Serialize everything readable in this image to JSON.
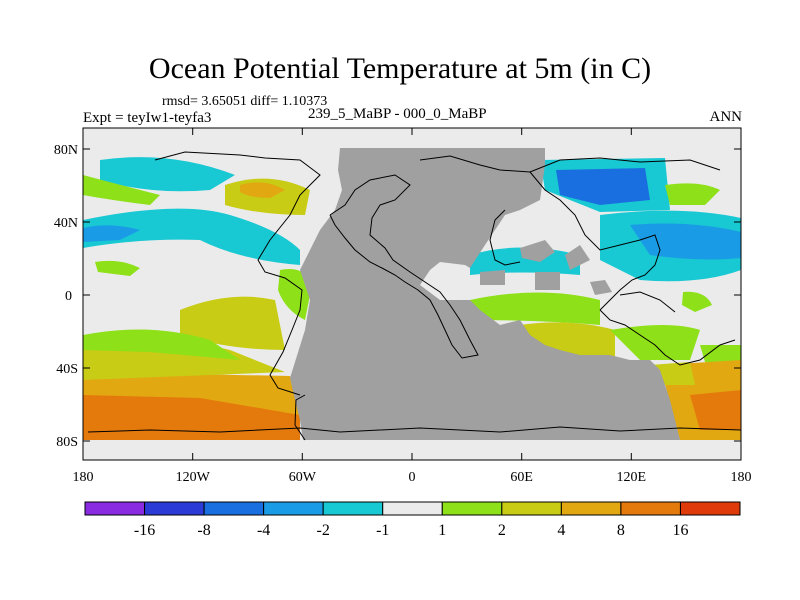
{
  "title": "Ocean Potential Temperature at 5m (in C)",
  "stats": "rmsd= 3.65051 diff= 1.10373",
  "experiment": "Expt = teyIw1-teyfa3",
  "period": "239_5_MaBP - 000_0_MaBP",
  "season": "ANN",
  "colors": {
    "land": "#a0a0a0",
    "neutral": "#ebebeb"
  },
  "lat_ticks": [
    "80N",
    "40N",
    "0",
    "40S",
    "80S"
  ],
  "lon_ticks": [
    "180",
    "120W",
    "60W",
    "0",
    "60E",
    "120E",
    "180"
  ],
  "colorbar": {
    "bins": [
      {
        "color": "#8a2be2"
      },
      {
        "color": "#2b3bd6"
      },
      {
        "color": "#1a6fe0"
      },
      {
        "color": "#1a9be6"
      },
      {
        "color": "#18c8d2"
      },
      {
        "color": "#ebebeb"
      },
      {
        "color": "#8ee018"
      },
      {
        "color": "#c8cc14"
      },
      {
        "color": "#e2a812"
      },
      {
        "color": "#e57a0c"
      },
      {
        "color": "#de3a0a"
      }
    ],
    "labels": [
      "-16",
      "-8",
      "-4",
      "-2",
      "-1",
      "1",
      "2",
      "4",
      "8",
      "16"
    ]
  }
}
